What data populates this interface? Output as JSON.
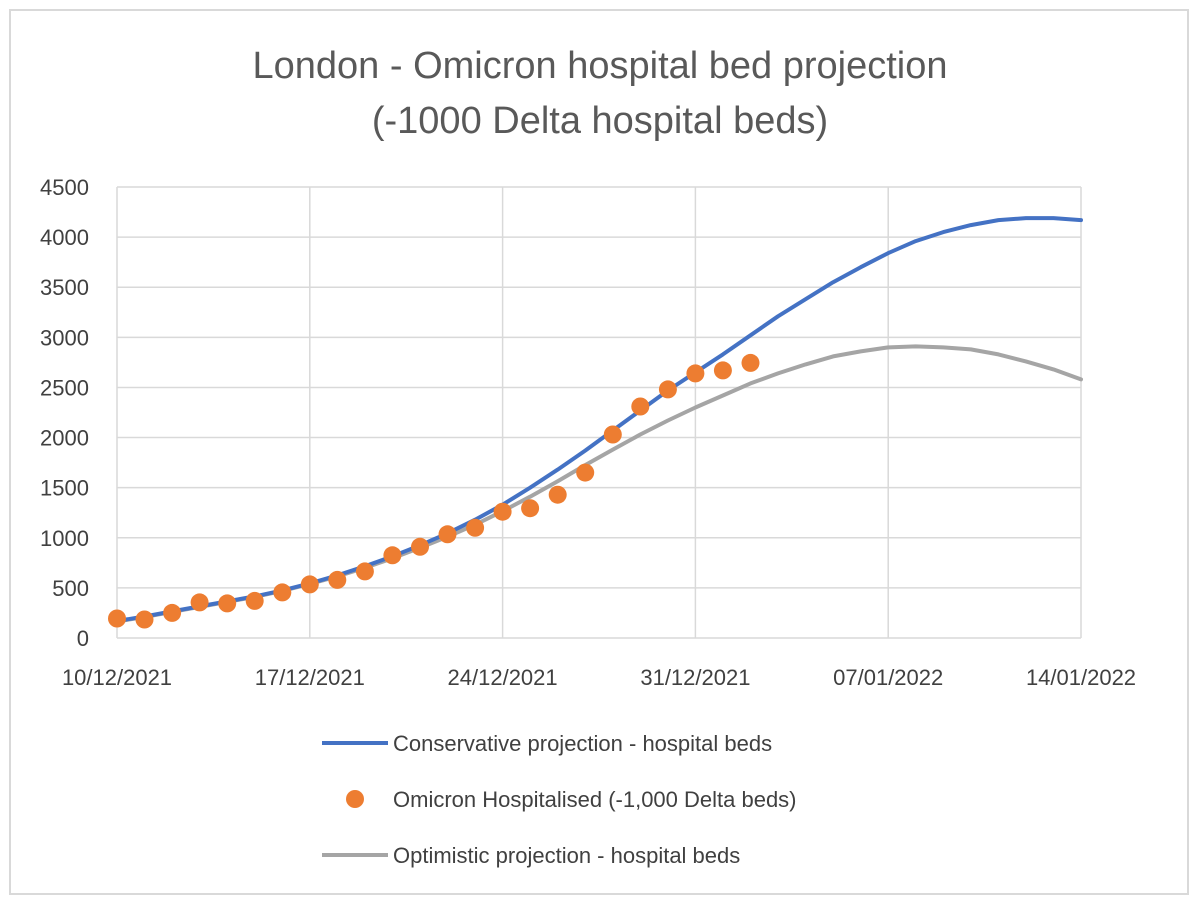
{
  "chart_data": {
    "type": "line",
    "title": "London - Omicron hospital bed projection",
    "subtitle": "(-1000 Delta hospital beds)",
    "xlabel": "",
    "ylabel": "",
    "ylim": [
      0,
      4500
    ],
    "y_ticks": [
      "0",
      "500",
      "1000",
      "1500",
      "2000",
      "2500",
      "3000",
      "3500",
      "4000",
      "4500"
    ],
    "x_tick_labels": [
      "10/12/2021",
      "17/12/2021",
      "24/12/2021",
      "31/12/2021",
      "07/01/2022",
      "14/01/2022"
    ],
    "x_dates": [
      "10/12/2021",
      "11/12/2021",
      "12/12/2021",
      "13/12/2021",
      "14/12/2021",
      "15/12/2021",
      "16/12/2021",
      "17/12/2021",
      "18/12/2021",
      "19/12/2021",
      "20/12/2021",
      "21/12/2021",
      "22/12/2021",
      "23/12/2021",
      "24/12/2021",
      "25/12/2021",
      "26/12/2021",
      "27/12/2021",
      "28/12/2021",
      "29/12/2021",
      "30/12/2021",
      "31/12/2021",
      "01/01/2022",
      "02/01/2022",
      "03/01/2022",
      "04/01/2022",
      "05/01/2022",
      "06/01/2022",
      "07/01/2022",
      "08/01/2022",
      "09/01/2022",
      "10/01/2022",
      "11/01/2022",
      "12/01/2022",
      "13/01/2022",
      "14/01/2022"
    ],
    "grid": true,
    "legend_position": "bottom",
    "series": [
      {
        "name": "Conservative projection - hospital beds",
        "style": "line",
        "color": "#4472c4",
        "values": [
          170,
          215,
          265,
          315,
          365,
          415,
          475,
          545,
          625,
          715,
          815,
          925,
          1045,
          1180,
          1330,
          1500,
          1680,
          1870,
          2070,
          2270,
          2470,
          2650,
          2830,
          3020,
          3210,
          3380,
          3550,
          3700,
          3840,
          3960,
          4050,
          4120,
          4170,
          4190,
          4190,
          4170
        ]
      },
      {
        "name": "Omicron Hospitalised (-1,000 Delta beds)",
        "style": "markers",
        "color": "#ed7d31",
        "values": [
          195,
          185,
          250,
          355,
          345,
          370,
          455,
          535,
          580,
          665,
          825,
          910,
          1035,
          1100,
          1260,
          1295,
          1430,
          1650,
          2030,
          2310,
          2480,
          2640,
          2670,
          2745
        ]
      },
      {
        "name": "Optimistic projection - hospital beds",
        "style": "line",
        "color": "#a5a5a5",
        "values": [
          165,
          210,
          260,
          310,
          360,
          410,
          470,
          540,
          615,
          700,
          795,
          900,
          1010,
          1130,
          1265,
          1410,
          1565,
          1725,
          1880,
          2030,
          2170,
          2300,
          2420,
          2540,
          2640,
          2730,
          2810,
          2860,
          2900,
          2910,
          2900,
          2880,
          2830,
          2760,
          2680,
          2580
        ]
      }
    ]
  }
}
